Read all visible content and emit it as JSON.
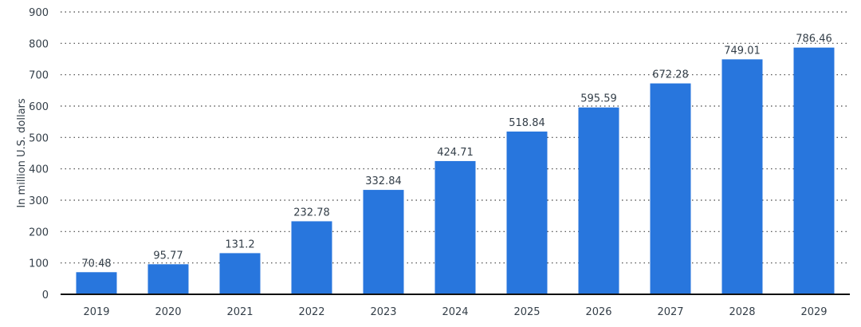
{
  "chart_data": {
    "type": "bar",
    "title": "",
    "xlabel": "",
    "ylabel": "In million U.S. dollars",
    "ylim": [
      0,
      900
    ],
    "yticks": [
      0,
      100,
      200,
      300,
      400,
      500,
      600,
      700,
      800,
      900
    ],
    "grid": true,
    "categories": [
      "2019",
      "2020",
      "2021",
      "2022",
      "2023",
      "2024",
      "2025",
      "2026",
      "2027",
      "2028",
      "2029"
    ],
    "values": [
      70.48,
      95.77,
      131.2,
      232.78,
      332.84,
      424.71,
      518.84,
      595.59,
      672.28,
      749.01,
      786.46
    ],
    "value_labels": [
      "70.48",
      "95.77",
      "131.2",
      "232.78",
      "332.84",
      "424.71",
      "518.84",
      "595.59",
      "672.28",
      "749.01",
      "786.46"
    ],
    "colors": {
      "bar": "#2876dd",
      "text": "#333e48",
      "grid": "#444444",
      "axis": "#111111"
    }
  }
}
